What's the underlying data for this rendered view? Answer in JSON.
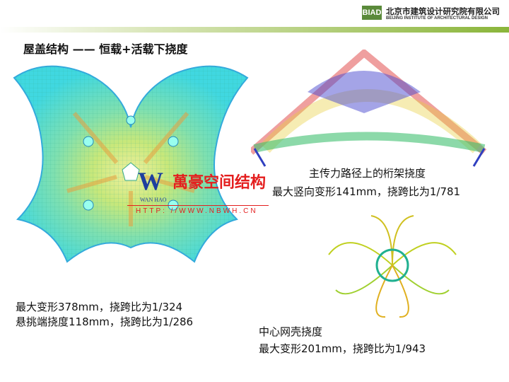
{
  "header": {
    "logo": "BIAD",
    "org_cn": "北京市建筑设计研究院有限公司",
    "org_en": "BEIJING INSTITUTE OF ARCHITECTURAL DESIGN",
    "accent": "#8ab53a"
  },
  "title": "屋盖结构 —— 恒载+活载下挠度",
  "roof": {
    "line1": "最大变形378mm，挠跨比为1/324",
    "line2": "悬挑端挠度118mm，挠跨比为1/286"
  },
  "truss": {
    "line1": "主传力路径上的桁架挠度",
    "line2": "最大竖向变形141mm，挠跨比为1/781"
  },
  "shell": {
    "line1": "中心网壳挠度",
    "line2": "最大变形201mm，挠跨比为1/943"
  },
  "watermark": {
    "brand": "WAN HAO",
    "cn": "萬豪空间结构",
    "url": "HTTP: //WWW.NBWH.CN"
  }
}
